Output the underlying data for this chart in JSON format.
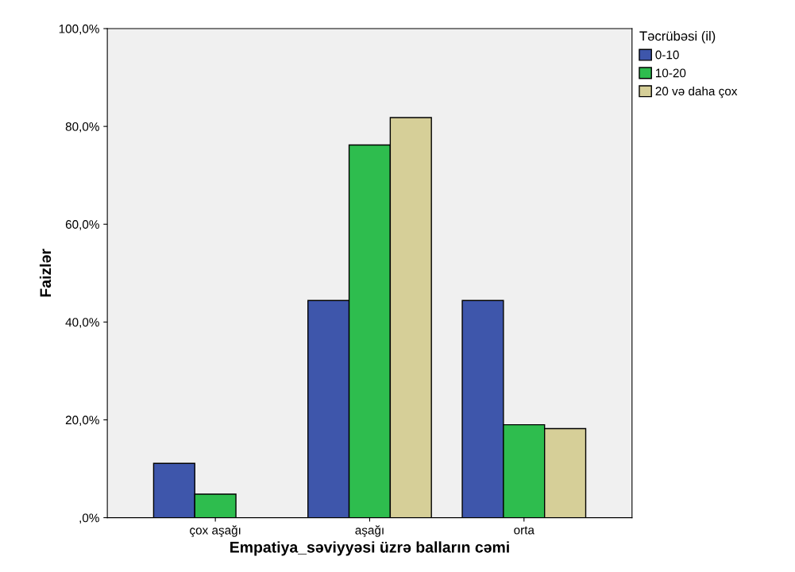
{
  "chart_data": {
    "type": "bar",
    "xlabel": "Empatiya_səviyyəsi üzrə balların cəmi",
    "ylabel": "Faizlər",
    "legend_title": "Təcrübəsi (il)",
    "categories": [
      "çox aşağı",
      "aşağı",
      "orta"
    ],
    "series": [
      {
        "name": "0-10",
        "color": "#3e56ab",
        "values": [
          11.1,
          44.4,
          44.4
        ]
      },
      {
        "name": "10-20",
        "color": "#2ebd4e",
        "values": [
          4.8,
          76.2,
          19.0
        ]
      },
      {
        "name": "20 və daha çox",
        "color": "#d6cf98",
        "values": [
          null,
          81.8,
          18.2
        ]
      }
    ],
    "ylim": [
      0,
      100
    ],
    "yticks": [
      {
        "value": 0,
        "label": ",0%"
      },
      {
        "value": 20,
        "label": "20,0%"
      },
      {
        "value": 40,
        "label": "40,0%"
      },
      {
        "value": 60,
        "label": "60,0%"
      },
      {
        "value": 80,
        "label": "80,0%"
      },
      {
        "value": 100,
        "label": "100,0%"
      }
    ],
    "grid": false,
    "legend": "top right"
  }
}
